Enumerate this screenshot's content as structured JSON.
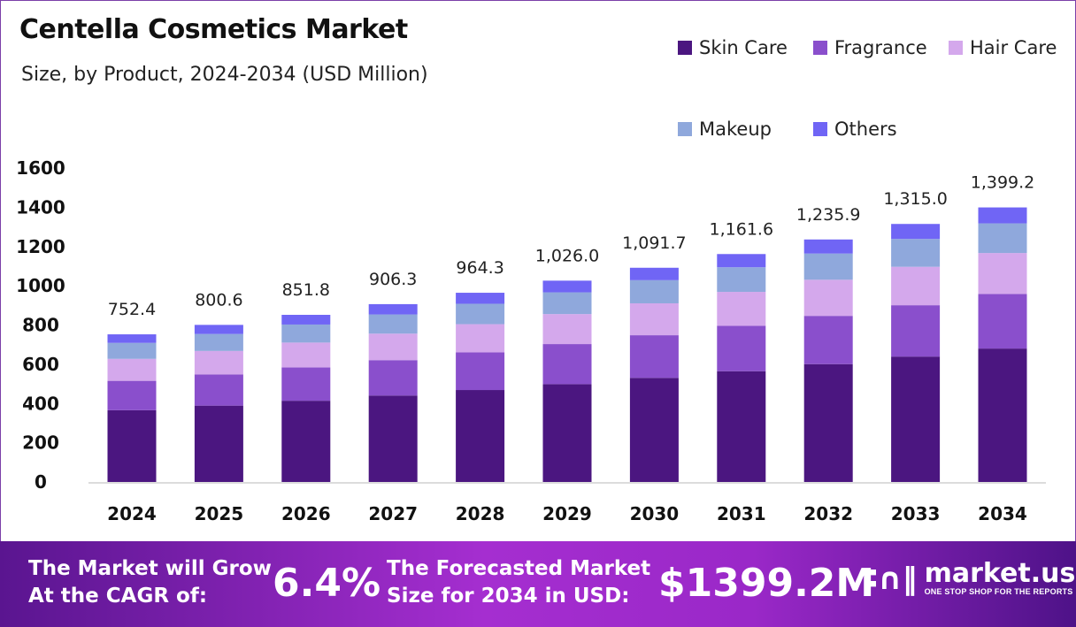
{
  "chart_data": {
    "type": "bar",
    "stacked": true,
    "title": "Centella Cosmetics Market",
    "subtitle": "Size, by Product, 2024-2034 (USD Million)",
    "categories": [
      "2024",
      "2025",
      "2026",
      "2027",
      "2028",
      "2029",
      "2030",
      "2031",
      "2032",
      "2033",
      "2034"
    ],
    "series": [
      {
        "name": "Skin Care",
        "color": "#4b1680",
        "values": [
          365.7,
          389.1,
          414.0,
          440.5,
          468.6,
          498.6,
          530.6,
          564.5,
          600.6,
          639.1,
          680.0
        ]
      },
      {
        "name": "Fragrance",
        "color": "#8a4fcc",
        "values": [
          149.7,
          159.3,
          169.5,
          180.4,
          191.9,
          204.2,
          217.2,
          231.2,
          245.9,
          261.7,
          278.4
        ]
      },
      {
        "name": "Hair Care",
        "color": "#d4a8ec",
        "values": [
          112.1,
          119.3,
          126.9,
          135.0,
          143.7,
          152.9,
          162.7,
          173.1,
          184.1,
          195.9,
          208.5
        ]
      },
      {
        "name": "Makeup",
        "color": "#8fa8dc",
        "values": [
          81.3,
          86.5,
          92.0,
          97.9,
          104.1,
          110.8,
          117.9,
          125.5,
          133.5,
          142.0,
          151.1
        ]
      },
      {
        "name": "Others",
        "color": "#7065f5",
        "values": [
          43.6,
          46.4,
          49.4,
          52.5,
          56.0,
          59.5,
          63.3,
          67.3,
          71.8,
          76.3,
          81.2
        ]
      }
    ],
    "totals": [
      "752.4",
      "800.6",
      "851.8",
      "906.3",
      "964.3",
      "1,026.0",
      "1,091.7",
      "1,161.6",
      "1,235.9",
      "1,315.0",
      "1,399.2"
    ],
    "yticks": [
      "0",
      "200",
      "400",
      "600",
      "800",
      "1000",
      "1200",
      "1400",
      "1600"
    ],
    "ylim": [
      0,
      1600
    ],
    "grid": false,
    "legend": "top-right"
  },
  "banner": {
    "cagr_label_1": "The Market will Grow",
    "cagr_label_2": "At the CAGR of:",
    "cagr_value": "6.4%",
    "forecast_label_1": "The Forecasted Market",
    "forecast_label_2": "Size for 2034 in USD:",
    "forecast_value": "$1399.2M",
    "brand_name": "market.us",
    "brand_tagline": "ONE STOP SHOP FOR THE REPORTS"
  }
}
